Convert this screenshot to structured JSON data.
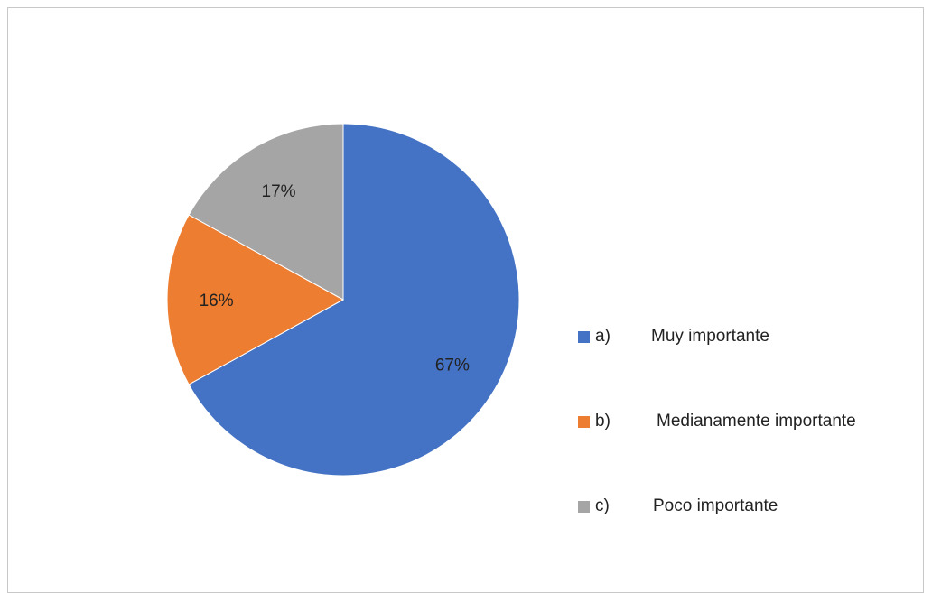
{
  "chart_data": {
    "type": "pie",
    "slices": [
      {
        "label": "a)\tMuy importante",
        "marker": "a)",
        "text": "Muy importante",
        "value": 67,
        "display": "67%",
        "color": "#4472C4"
      },
      {
        "label": "b)\tMedianamente importante",
        "marker": "b)",
        "text": "Medianamente importante",
        "value": 16,
        "display": "16%",
        "color": "#ED7D31"
      },
      {
        "label": "c)\tPoco importante",
        "marker": "c)",
        "text": "Poco importante",
        "value": 17,
        "display": "17%",
        "color": "#A5A5A5"
      }
    ],
    "legend_position": "right",
    "start_angle": "12 o'clock",
    "direction": "clockwise"
  },
  "legend": {
    "items": [
      {
        "marker": "a)",
        "text": "Muy importante"
      },
      {
        "marker": "b)",
        "text": "Medianamente importante"
      },
      {
        "marker": "c)",
        "text": "Poco importante"
      }
    ]
  }
}
